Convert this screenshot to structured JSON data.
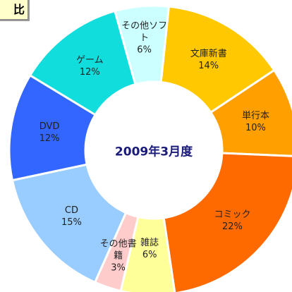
{
  "chart_data": {
    "type": "donut",
    "title": "比",
    "center_label": "2009年3月度",
    "categories": [
      "文庫新書",
      "単行本",
      "コミック",
      "雑誌",
      "その他書籍",
      "CD",
      "DVD",
      "ゲーム",
      "その他ソフト"
    ],
    "values": [
      14,
      10,
      22,
      6,
      3,
      15,
      12,
      12,
      6
    ],
    "value_labels": [
      "14%",
      "10%",
      "22%",
      "6%",
      "3%",
      "15%",
      "12%",
      "12%",
      "6%"
    ],
    "colors": [
      "#FFC800",
      "#FFA000",
      "#FF6A00",
      "#FFFF99",
      "#FFCCCC",
      "#99CCFF",
      "#3366FF",
      "#11DDDD",
      "#CCFFFF"
    ]
  }
}
